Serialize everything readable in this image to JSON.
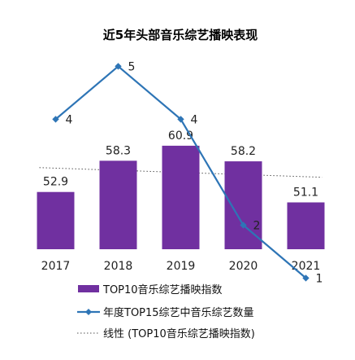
{
  "chart_data": {
    "type": "bar",
    "title": "近5年头部音乐综艺播映表现",
    "categories": [
      "2017",
      "2018",
      "2019",
      "2020",
      "2021"
    ],
    "series": [
      {
        "name": "TOP10音乐综艺播映指数",
        "type": "bar",
        "axis": "left",
        "values": [
          52.9,
          58.3,
          60.9,
          58.2,
          51.1
        ],
        "labels": [
          "52.9",
          "58.3",
          "60.9",
          "58.2",
          "51.1"
        ],
        "color": "#7030a0"
      },
      {
        "name": "年度TOP15综艺中音乐综艺数量",
        "type": "line",
        "axis": "right",
        "values": [
          4,
          5,
          4,
          2,
          1
        ],
        "labels": [
          "4",
          "5",
          "4",
          "2",
          "1"
        ],
        "color": "#2e75b6"
      },
      {
        "name": "线性 (TOP10音乐综艺播映指数)",
        "type": "trendline",
        "axis": "left",
        "of_series": "TOP10音乐综艺播映指数",
        "color": "#555555"
      }
    ],
    "ylim_left": [
      43,
      63
    ],
    "ylim_right": [
      0,
      6
    ],
    "axes_visible": false,
    "grid": false,
    "legend_position": "bottom"
  }
}
